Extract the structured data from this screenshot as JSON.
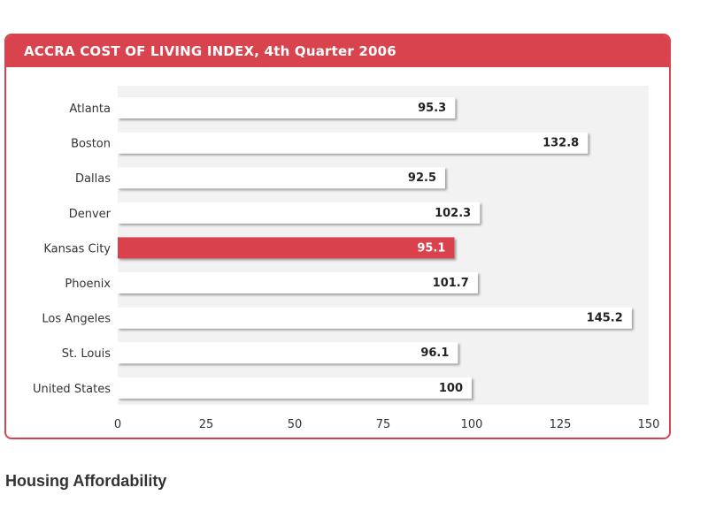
{
  "chart_data": {
    "type": "bar",
    "orientation": "horizontal",
    "title": "ACCRA COST OF LIVING INDEX, 4th Quarter 2006",
    "categories": [
      "Atlanta",
      "Boston",
      "Dallas",
      "Denver",
      "Kansas City",
      "Phoenix",
      "Los Angeles",
      "St. Louis",
      "United States"
    ],
    "values": [
      95.3,
      132.8,
      92.5,
      102.3,
      95.1,
      101.7,
      145.2,
      96.1,
      100
    ],
    "value_labels": [
      "95.3",
      "132.8",
      "92.5",
      "102.3",
      "95.1",
      "101.7",
      "145.2",
      "96.1",
      "100"
    ],
    "highlight_category": "Kansas City",
    "xlim": [
      0,
      150
    ],
    "xticks": [
      "0",
      "25",
      "50",
      "75",
      "100",
      "125",
      "150"
    ],
    "xlabel": "",
    "ylabel": "",
    "colors": {
      "accent": "#d9434e",
      "bar": "#ffffff",
      "highlight": "#d9434e",
      "plot_bg": "#f2f2f2"
    }
  },
  "footer": {
    "heading": "Housing Affordability"
  }
}
